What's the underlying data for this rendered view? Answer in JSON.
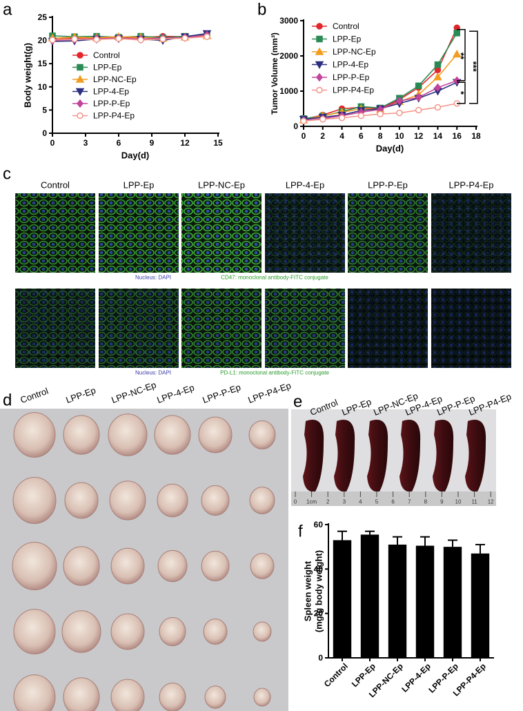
{
  "chart_data": [
    {
      "type": "line",
      "panel_label": "a",
      "xlabel": "Day(d)",
      "ylabel": "Body weight(g)",
      "x": [
        0,
        2,
        4,
        6,
        8,
        10,
        12,
        14
      ],
      "xlim": [
        0,
        15
      ],
      "xticks": [
        0,
        3,
        6,
        9,
        12,
        15
      ],
      "ylim": [
        0,
        25
      ],
      "yticks": [
        0,
        5,
        10,
        15,
        20,
        25
      ],
      "series": [
        {
          "name": "Control",
          "color": "#e2262b",
          "marker": "circle",
          "values": [
            20.2,
            20.5,
            20.6,
            20.7,
            20.6,
            20.9,
            20.8,
            21.2
          ]
        },
        {
          "name": "LPP-Ep",
          "color": "#2a8a55",
          "marker": "square",
          "values": [
            21.0,
            20.8,
            20.9,
            20.7,
            20.9,
            20.6,
            20.9,
            21.3
          ]
        },
        {
          "name": "LPP-NC-Ep",
          "color": "#f39c1f",
          "marker": "triangle-up",
          "values": [
            20.5,
            20.7,
            20.6,
            20.8,
            20.7,
            20.4,
            20.7,
            21.0
          ]
        },
        {
          "name": "LPP-4-Ep",
          "color": "#2b2f7f",
          "marker": "triangle-down",
          "values": [
            19.8,
            19.9,
            20.3,
            20.4,
            20.3,
            20.0,
            20.8,
            21.5
          ]
        },
        {
          "name": "LPP-P-Ep",
          "color": "#c2449b",
          "marker": "diamond",
          "values": [
            20.0,
            20.2,
            20.4,
            20.5,
            20.3,
            20.5,
            20.6,
            21.2
          ]
        },
        {
          "name": "LPP-P4-Ep",
          "color": "#f4968a",
          "marker": "open-circle",
          "values": [
            20.1,
            20.3,
            20.2,
            20.4,
            20.1,
            20.3,
            20.5,
            20.8
          ]
        }
      ]
    },
    {
      "type": "line",
      "panel_label": "b",
      "xlabel": "Day(d)",
      "ylabel": "Tumor Volume (mm³)",
      "x": [
        0,
        2,
        4,
        6,
        8,
        10,
        12,
        14,
        16
      ],
      "xlim": [
        0,
        18
      ],
      "xticks": [
        0,
        2,
        4,
        6,
        8,
        10,
        12,
        14,
        16,
        18
      ],
      "ylim": [
        0,
        3000
      ],
      "yticks": [
        0,
        1000,
        2000,
        3000
      ],
      "annotations": [
        "**",
        "***",
        "*"
      ],
      "series": [
        {
          "name": "Control",
          "color": "#e2262b",
          "marker": "circle",
          "values": [
            200,
            320,
            500,
            540,
            500,
            760,
            1100,
            1600,
            2800
          ]
        },
        {
          "name": "LPP-Ep",
          "color": "#2a8a55",
          "marker": "square",
          "values": [
            220,
            290,
            420,
            560,
            520,
            800,
            1150,
            1750,
            2650
          ]
        },
        {
          "name": "LPP-NC-Ep",
          "color": "#f39c1f",
          "marker": "triangle-up",
          "values": [
            180,
            300,
            400,
            500,
            480,
            700,
            900,
            1400,
            2050
          ]
        },
        {
          "name": "LPP-4-Ep",
          "color": "#2b2f7f",
          "marker": "triangle-down",
          "values": [
            200,
            260,
            320,
            450,
            500,
            650,
            800,
            1000,
            1250
          ]
        },
        {
          "name": "LPP-P-Ep",
          "color": "#c2449b",
          "marker": "diamond",
          "values": [
            170,
            220,
            300,
            400,
            480,
            720,
            820,
            1100,
            1300
          ]
        },
        {
          "name": "LPP-P4-Ep",
          "color": "#f4968a",
          "marker": "open-circle",
          "values": [
            150,
            200,
            240,
            300,
            350,
            380,
            460,
            540,
            650
          ]
        }
      ]
    },
    {
      "type": "bar",
      "panel_label": "f",
      "ylabel": [
        "Spleen weight",
        "(mg/g body weight)"
      ],
      "categories": [
        "Control",
        "LPP-Ep",
        "LPP-NC-Ep",
        "LPP-4-Ep",
        "LPP-P-Ep",
        "LPP-P4-Ep"
      ],
      "values": [
        53,
        55.5,
        51,
        50.5,
        50,
        47
      ],
      "errors": [
        4,
        1.5,
        3.5,
        4,
        3,
        4
      ],
      "color": "#000000",
      "ylim": [
        0,
        60
      ],
      "yticks": [
        0,
        20,
        40,
        60
      ]
    }
  ],
  "panel_c": {
    "letter": "c",
    "columns": [
      "Control",
      "LPP-Ep",
      "LPP-NC-Ep",
      "LPP-4-Ep",
      "LPP-P-Ep",
      "LPP-P4-Ep"
    ],
    "rows": [
      {
        "stain": "Nucleus: DAPI",
        "target": "CD47: monoclonal antibody-FITC conjugate"
      },
      {
        "stain": "Nucleus: DAPI",
        "target": "PD-L1: monoclonal antibody-FITC conjugate"
      }
    ]
  },
  "panel_d": {
    "letter": "d",
    "labels": [
      "Control",
      "LPP-Ep",
      "LPP-NC-Ep",
      "LPP-4-Ep",
      "LPP-P-Ep",
      "LPP-P4-Ep"
    ]
  },
  "panel_e": {
    "letter": "e",
    "labels": [
      "Control",
      "LPP-Ep",
      "LPP-NC-Ep",
      "LPP-4-Ep",
      "LPP-P-Ep",
      "LPP-P4-Ep"
    ],
    "ruler": [
      "0",
      "1cm",
      "2",
      "3",
      "4",
      "5",
      "6",
      "7",
      "8",
      "9",
      "10",
      "11",
      "12"
    ]
  }
}
